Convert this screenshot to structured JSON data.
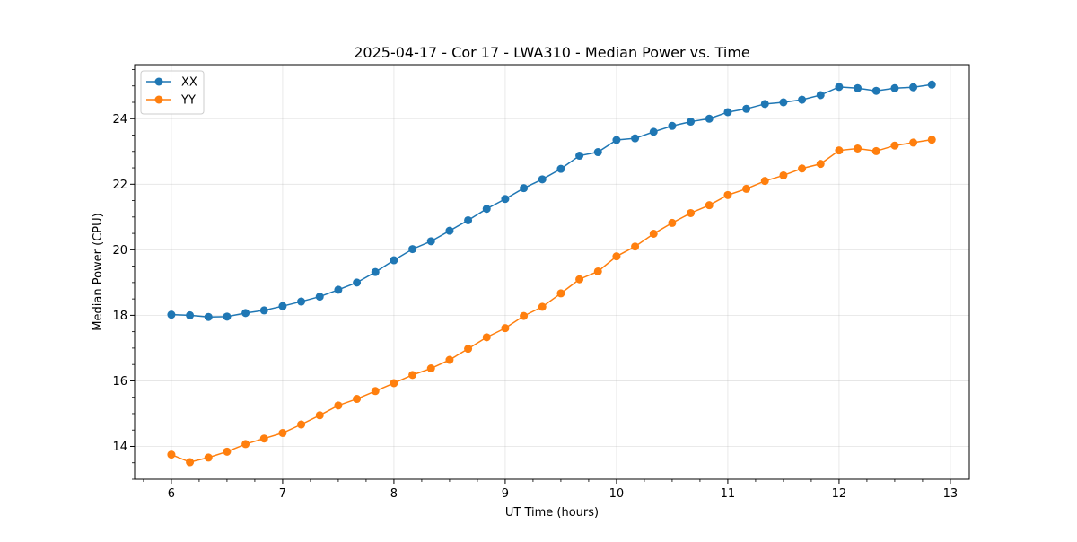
{
  "chart_data": {
    "type": "line",
    "title": "2025-04-17 - Cor 17 - LWA310 - Median Power vs. Time",
    "xlabel": "UT Time (hours)",
    "ylabel": "Median Power (CPU)",
    "xlim": [
      5.67,
      13.17
    ],
    "ylim": [
      13.0,
      25.65
    ],
    "xticks": [
      6,
      7,
      8,
      9,
      10,
      11,
      12,
      13
    ],
    "yticks": [
      14,
      16,
      18,
      20,
      22,
      24
    ],
    "grid": true,
    "legend_position": "top-left",
    "x": [
      6.0,
      6.1667,
      6.3333,
      6.5,
      6.6667,
      6.8333,
      7.0,
      7.1667,
      7.3333,
      7.5,
      7.6667,
      7.8333,
      8.0,
      8.1667,
      8.3333,
      8.5,
      8.6667,
      8.8333,
      9.0,
      9.1667,
      9.3333,
      9.5,
      9.6667,
      9.8333,
      10.0,
      10.1667,
      10.3333,
      10.5,
      10.6667,
      10.8333,
      11.0,
      11.1667,
      11.3333,
      11.5,
      11.6667,
      11.8333,
      12.0,
      12.1667,
      12.3333,
      12.5,
      12.6667,
      12.8333
    ],
    "series": [
      {
        "name": "XX",
        "color": "#1f77b4",
        "values": [
          18.02,
          18.0,
          17.95,
          17.96,
          18.07,
          18.15,
          18.28,
          18.42,
          18.57,
          18.78,
          19.0,
          19.32,
          19.68,
          20.02,
          20.26,
          20.58,
          20.9,
          21.25,
          21.55,
          21.88,
          22.15,
          22.47,
          22.87,
          22.98,
          23.35,
          23.4,
          23.6,
          23.78,
          23.91,
          24.0,
          24.2,
          24.3,
          24.45,
          24.5,
          24.58,
          24.72,
          24.97,
          24.93,
          24.85,
          24.93,
          24.96,
          25.04
        ]
      },
      {
        "name": "YY",
        "color": "#ff7f0e",
        "values": [
          13.75,
          13.52,
          13.66,
          13.84,
          14.07,
          14.24,
          14.41,
          14.67,
          14.95,
          15.25,
          15.45,
          15.69,
          15.93,
          16.18,
          16.38,
          16.64,
          16.98,
          17.33,
          17.61,
          17.98,
          18.26,
          18.67,
          19.1,
          19.34,
          19.8,
          20.1,
          20.49,
          20.82,
          21.12,
          21.36,
          21.67,
          21.86,
          22.1,
          22.27,
          22.48,
          22.62,
          23.03,
          23.09,
          23.01,
          23.18,
          23.27,
          23.36
        ]
      }
    ]
  }
}
